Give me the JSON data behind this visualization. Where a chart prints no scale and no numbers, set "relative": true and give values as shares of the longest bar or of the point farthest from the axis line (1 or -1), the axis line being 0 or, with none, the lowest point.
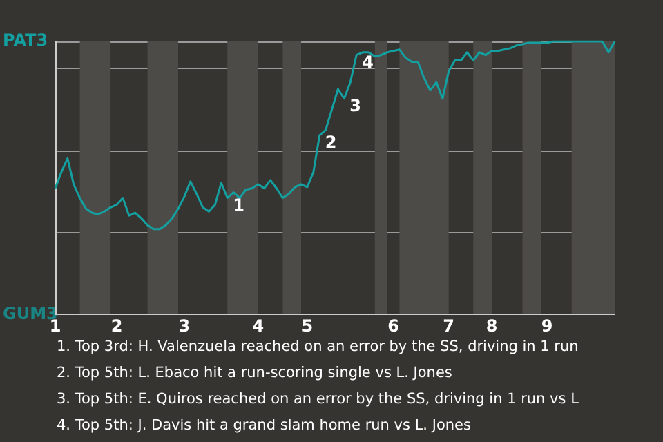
{
  "chart_data": {
    "type": "line",
    "relative": true,
    "categories": [
      "1",
      null,
      null,
      null,
      null,
      null,
      null,
      null,
      null,
      null,
      "2",
      null,
      null,
      null,
      null,
      null,
      null,
      null,
      null,
      null,
      null,
      "3",
      null,
      null,
      null,
      null,
      null,
      null,
      null,
      null,
      null,
      null,
      null,
      "4",
      null,
      null,
      null,
      null,
      null,
      null,
      null,
      "5",
      null,
      null,
      null,
      null,
      null,
      null,
      null,
      null,
      null,
      null,
      null,
      null,
      null,
      "6",
      null,
      null,
      null,
      null,
      null,
      null,
      null,
      null,
      "7",
      null,
      null,
      null,
      null,
      null,
      null,
      "8",
      null,
      null,
      null,
      null,
      null,
      null,
      null,
      null,
      "9",
      null,
      null,
      null,
      null,
      null,
      null,
      null,
      null,
      null,
      null,
      null
    ],
    "series": [
      {
        "color": "#14a0a0",
        "values": [
          0.46,
          0.52,
          0.57,
          0.475,
          0.425,
          0.385,
          0.37,
          0.365,
          0.375,
          0.39,
          0.4,
          0.425,
          0.36,
          0.37,
          0.35,
          0.325,
          0.31,
          0.31,
          0.325,
          0.35,
          0.385,
          0.43,
          0.485,
          0.44,
          0.39,
          0.375,
          0.4,
          0.48,
          0.425,
          0.445,
          0.425,
          0.455,
          0.46,
          0.475,
          0.46,
          0.49,
          0.46,
          0.425,
          0.44,
          0.465,
          0.475,
          0.465,
          0.52,
          0.655,
          0.675,
          0.75,
          0.825,
          0.79,
          0.85,
          0.95,
          0.96,
          0.96,
          0.945,
          0.95,
          0.96,
          0.965,
          0.97,
          0.94,
          0.925,
          0.925,
          0.865,
          0.82,
          0.85,
          0.79,
          0.89,
          0.93,
          0.93,
          0.96,
          0.93,
          0.96,
          0.95,
          0.965,
          0.965,
          0.97,
          0.975,
          0.985,
          0.99,
          0.995,
          0.995,
          0.995,
          0.995,
          1,
          1,
          1,
          1,
          1,
          1,
          1,
          1,
          1,
          0.96,
          1
        ]
      }
    ],
    "grid": "y",
    "marker": "none",
    "annotations": [
      "PAT3",
      "GUM3",
      "1",
      "2",
      "3",
      "4",
      "1. Top 3rd: H. Valenzuela reached on an error by the SS, driving in 1 run",
      "2. Top 5th: L. Ebaco hit a run-scoring single vs L. Jones",
      "3. Top 5th: E. Quiros reached on an error by the SS, driving in 1 run vs L",
      "4. Top 5th: J. Davis hit a grand slam home run vs L. Jones"
    ]
  }
}
